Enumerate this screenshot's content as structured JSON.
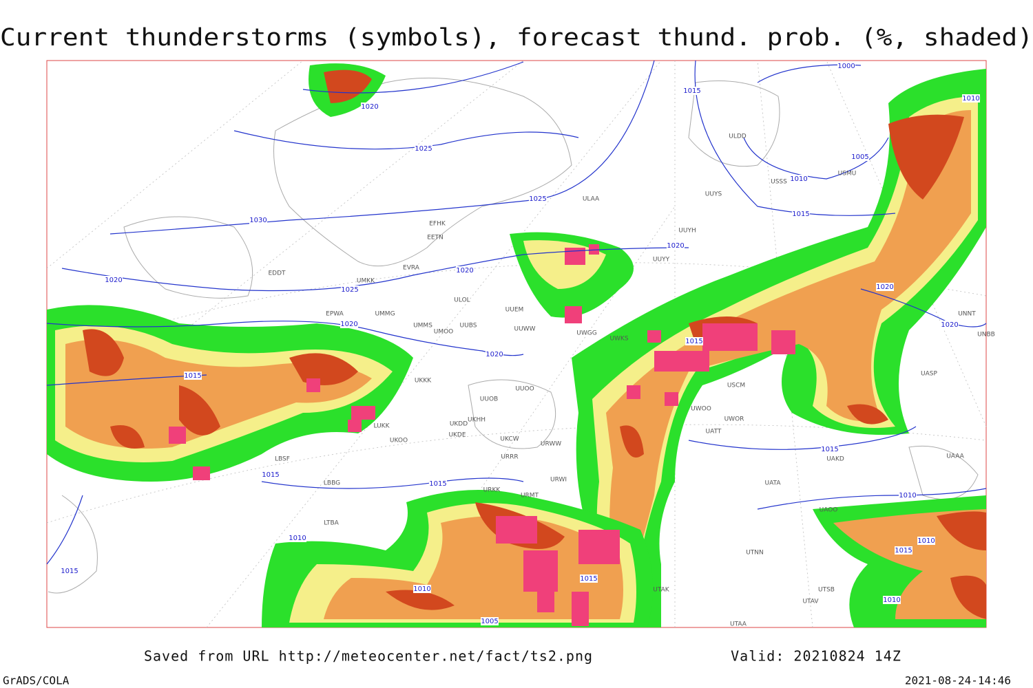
{
  "title": "Current thunderstorms (symbols), forecast thund. prob. (%, shaded)",
  "footer": {
    "saved": "Saved from URL http://meteocenter.net/fact/ts2.png",
    "valid": "Valid: 20210824 14Z",
    "software": "GrADS/COLA",
    "timestamp": "2021-08-24-14:46"
  },
  "isobar_labels": [
    "1020",
    "1025",
    "1025",
    "1030",
    "1020",
    "1025",
    "1020",
    "1020",
    "1020",
    "1015",
    "1015",
    "1015",
    "1010",
    "1015",
    "1010",
    "1005",
    "1015",
    "1015",
    "1020",
    "1015",
    "1010",
    "1005",
    "1015",
    "1000",
    "1010",
    "1020",
    "1020",
    "1015",
    "1010",
    "1010",
    "1015",
    "1010"
  ],
  "stations": [
    "ULAA",
    "UUYS",
    "UUYH",
    "UUYY",
    "ULOL",
    "UUEM",
    "UMMG",
    "EPWA",
    "UMMS",
    "UMOO",
    "UUBS",
    "UUWW",
    "UWGG",
    "UWKS",
    "UKKK",
    "UUOO",
    "UUOB",
    "UKHH",
    "UKDD",
    "UKDE",
    "UKOO",
    "LUKK",
    "UKCW",
    "URRR",
    "URWI",
    "URKK",
    "URMT",
    "URWW",
    "UWOO",
    "UWOR",
    "UATT",
    "USCM",
    "UAKD",
    "UATA",
    "UAOO",
    "UTNN",
    "UTAK",
    "UTSB",
    "UTAV",
    "UTAA",
    "USSS",
    "USMU",
    "ULDD",
    "EFHK",
    "EETN",
    "EVRA",
    "EDDT",
    "UMKK",
    "LBSF",
    "LBBG",
    "LTBA",
    "UNNT",
    "UNBB",
    "UASP",
    "UAAA"
  ]
}
